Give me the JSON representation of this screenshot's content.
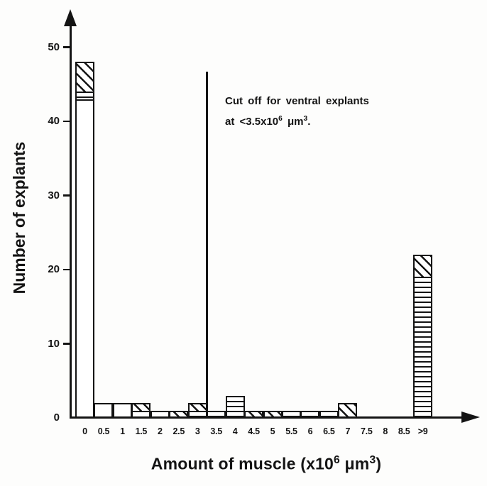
{
  "figure": {
    "ylabel": "Number of explants",
    "xlabel": {
      "pre": "Amount of muscle (x10",
      "sup1": "6",
      "mid": " μm",
      "sup2": "3",
      "end": ")"
    },
    "annotation": {
      "line1": "Cut off for ventral explants",
      "line2_pre": "at <3.5x10",
      "line2_sup1": "6",
      "line2_mid": " μm",
      "line2_sup2": "3",
      "line2_end": "."
    }
  },
  "chart_data": {
    "type": "bar",
    "subtype": "stacked histogram of explant counts by muscle volume bin",
    "title": "",
    "xlabel": "Amount of muscle (x10^6 μm^3)",
    "ylabel": "Number of explants",
    "ylim": [
      0,
      54
    ],
    "yticks": [
      0,
      10,
      20,
      30,
      40,
      50
    ],
    "categories": [
      "0",
      "0.5",
      "1",
      "1.5",
      "2",
      "2.5",
      "3",
      "3.5",
      "4",
      "4.5",
      "5",
      "5.5",
      "6",
      "6.5",
      "7",
      "7.5",
      "8",
      "8.5",
      ">9"
    ],
    "series": [
      {
        "name": "plain (no hatch)",
        "pattern": "plain",
        "values": [
          43,
          2,
          2,
          1,
          1,
          0,
          0,
          0,
          0,
          0,
          0,
          0,
          0,
          0,
          0,
          0,
          0,
          0,
          0
        ]
      },
      {
        "name": "horizontal hatch",
        "pattern": "hlines",
        "values": [
          1,
          0,
          0,
          0,
          0,
          0,
          1,
          1,
          3,
          0,
          0,
          1,
          1,
          1,
          0,
          0,
          0,
          0,
          19
        ]
      },
      {
        "name": "diagonal hatch",
        "pattern": "diagonal",
        "values": [
          4,
          0,
          0,
          1,
          0,
          1,
          1,
          0,
          0,
          1,
          1,
          0,
          0,
          0,
          2,
          0,
          0,
          0,
          3
        ]
      }
    ],
    "totals": [
      48,
      2,
      2,
      2,
      1,
      1,
      2,
      1,
      3,
      1,
      1,
      1,
      1,
      1,
      2,
      0,
      0,
      0,
      22
    ],
    "annotation_text": "Cut off for ventral explants at <3.5x10^6 μm^3.",
    "cutoff_line_x": "at left edge of 3.5 bin (between 3 and 3.5)",
    "grid": false,
    "legend": false,
    "ink_color": "#141414",
    "background_color": "#ffffff"
  }
}
